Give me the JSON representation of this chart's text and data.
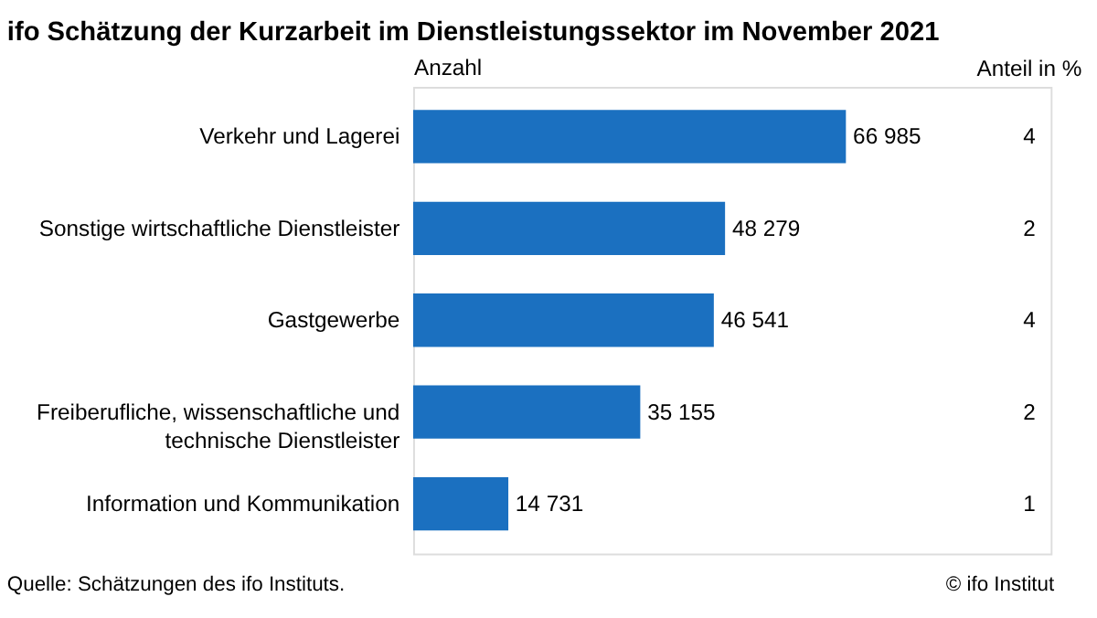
{
  "chart_data": {
    "type": "bar",
    "orientation": "horizontal",
    "title": "ifo Schätzung der Kurzarbeit im Dienstleistungssektor im November 2021",
    "xlabel": "Anzahl",
    "categories": [
      "Verkehr und Lagerei",
      "Sonstige wirtschaftliche Dienstleister",
      "Gastgewerbe",
      "Freiberufliche, wissenschaftliche und technische Dienstleister",
      "Information und Kommunikation"
    ],
    "values": [
      66985,
      48279,
      46541,
      35155,
      14731
    ],
    "color": "#1b70c0",
    "data_labels": true,
    "value_labels": [
      "66 985",
      "48 279",
      "46 541",
      "35 155",
      "14 731"
    ],
    "annotations": [
      "Anteil in %",
      "4",
      "2",
      "4",
      "2",
      "1",
      "Quelle: Schätzungen des ifo Instituts.",
      "© ifo Institut"
    ],
    "grid": false
  }
}
